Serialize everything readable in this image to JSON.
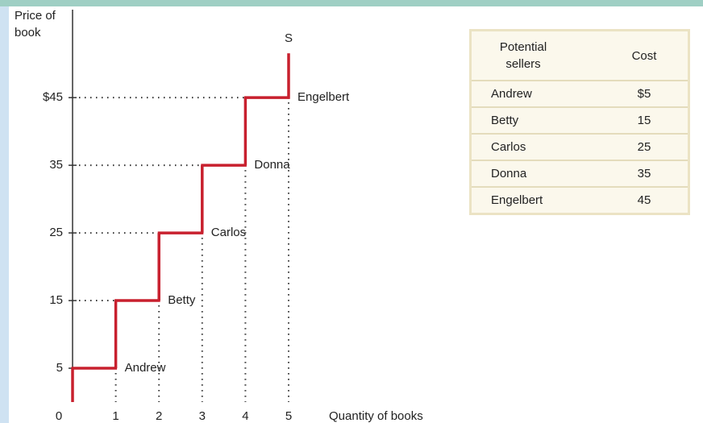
{
  "chart_data": {
    "type": "step",
    "y_label": "Price of book",
    "x_label": "Quantity of books",
    "curve_label": "S",
    "categories": [
      "Andrew",
      "Betty",
      "Carlos",
      "Donna",
      "Engelbert"
    ],
    "values": [
      5,
      15,
      25,
      35,
      45
    ],
    "value_labels": [
      "$5",
      "15",
      "25",
      "35",
      "45"
    ],
    "color": "#c8202e",
    "ylim": [
      0,
      58
    ],
    "yticks": [
      5,
      15,
      25,
      35,
      {
        "value": 45,
        "label": "$45"
      }
    ],
    "xlim": [
      0,
      8.5
    ],
    "xticks": [
      0,
      1,
      2,
      3,
      4,
      5
    ]
  },
  "table": {
    "headers": [
      "Potential sellers",
      "Cost"
    ]
  }
}
